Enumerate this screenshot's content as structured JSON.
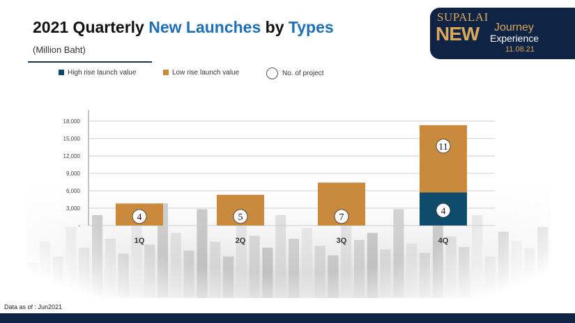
{
  "header": {
    "title_part1": "2021 Quarterly",
    "title_part2": "New Launches",
    "title_part3": "by",
    "title_part4": "Types",
    "subtitle": "(Million Baht)"
  },
  "brand": {
    "line1": "SUPALAI",
    "line2": "NEW",
    "line3": "Journey",
    "line4": "Experience",
    "date": "11.08.21",
    "color": "#d9a85a"
  },
  "legend": {
    "high_rise": "High rise launch value",
    "low_rise": "Low rise launch value",
    "projects": "No. of project"
  },
  "colors": {
    "high_rise": "#0f4b6b",
    "low_rise": "#c98a3e",
    "navy": "#0f2444",
    "accent_blue": "#1c6fb8"
  },
  "chart_data": {
    "type": "bar",
    "stacked": true,
    "categories": [
      "1Q",
      "2Q",
      "3Q",
      "4Q"
    ],
    "series": [
      {
        "name": "High rise launch value",
        "values": [
          0,
          0,
          0,
          5700
        ]
      },
      {
        "name": "Low rise launch value",
        "values": [
          3800,
          5300,
          7400,
          11600
        ]
      }
    ],
    "project_counts": {
      "high_rise": [
        null,
        null,
        null,
        4
      ],
      "low_rise": [
        4,
        5,
        7,
        11
      ]
    },
    "y_ticks": [
      "-",
      "3,000",
      "6,000",
      "9,000",
      "12,000",
      "15,000",
      "18,000"
    ],
    "ylim": [
      0,
      18000
    ],
    "grid": true,
    "legend_position": "top"
  },
  "footer": {
    "note": "Data as of : Jun2021"
  }
}
